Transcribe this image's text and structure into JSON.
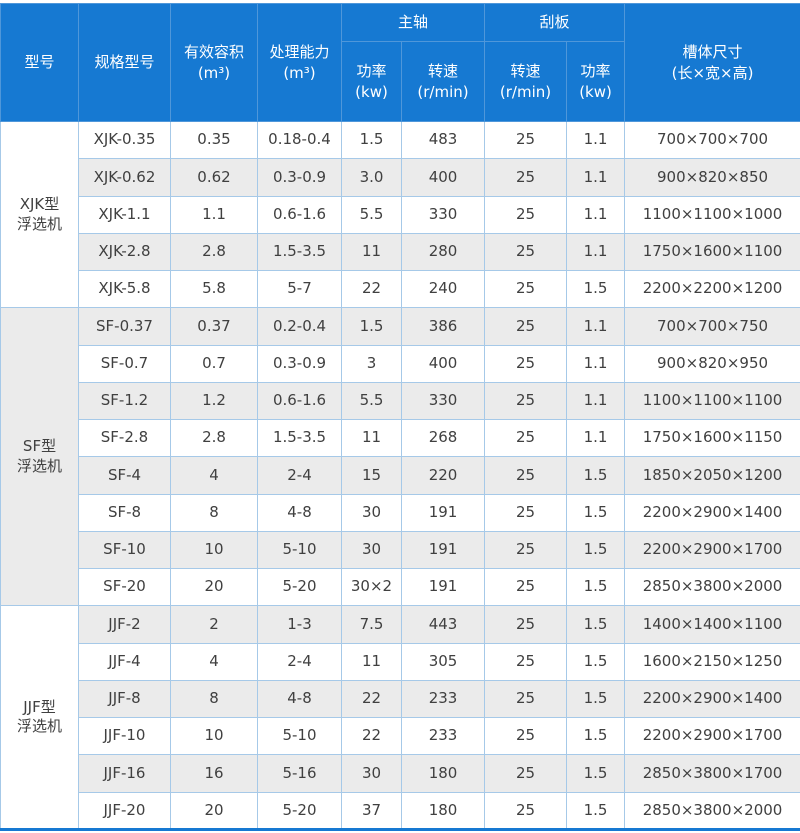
{
  "theme": {
    "header_bg": "#1679d2",
    "header_text": "#ffffff",
    "header_border": "#4f97da",
    "border": "#a6c9e8",
    "row_bg": "#ffffff",
    "row_alt_bg": "#ebebeb",
    "text": "#404040"
  },
  "chart_data": {
    "type": "table",
    "header": {
      "model_group": "型号",
      "spec": "规格型号",
      "volume": "有效容积\n(m³)",
      "capacity": "处理能力\n(m³)",
      "main_shaft": "主轴",
      "scraper": "刮板",
      "shaft_power": "功率\n(kw)",
      "shaft_speed": "转速\n(r/min)",
      "scraper_speed": "转速\n(r/min)",
      "scraper_power": "功率\n(kw)",
      "dimensions": "槽体尺寸\n(长×宽×高)"
    },
    "column_keys": [
      "spec",
      "volume",
      "capacity",
      "shaft_power",
      "shaft_speed",
      "scraper_speed",
      "scraper_power",
      "dimensions"
    ],
    "groups": [
      {
        "label": "XJK型\n浮选机",
        "rows": [
          [
            "XJK-0.35",
            "0.35",
            "0.18-0.4",
            "1.5",
            "483",
            "25",
            "1.1",
            "700×700×700"
          ],
          [
            "XJK-0.62",
            "0.62",
            "0.3-0.9",
            "3.0",
            "400",
            "25",
            "1.1",
            "900×820×850"
          ],
          [
            "XJK-1.1",
            "1.1",
            "0.6-1.6",
            "5.5",
            "330",
            "25",
            "1.1",
            "1100×1100×1000"
          ],
          [
            "XJK-2.8",
            "2.8",
            "1.5-3.5",
            "11",
            "280",
            "25",
            "1.1",
            "1750×1600×1100"
          ],
          [
            "XJK-5.8",
            "5.8",
            "5-7",
            "22",
            "240",
            "25",
            "1.5",
            "2200×2200×1200"
          ]
        ]
      },
      {
        "label": "SF型\n浮选机",
        "rows": [
          [
            "SF-0.37",
            "0.37",
            "0.2-0.4",
            "1.5",
            "386",
            "25",
            "1.1",
            "700×700×750"
          ],
          [
            "SF-0.7",
            "0.7",
            "0.3-0.9",
            "3",
            "400",
            "25",
            "1.1",
            "900×820×950"
          ],
          [
            "SF-1.2",
            "1.2",
            "0.6-1.6",
            "5.5",
            "330",
            "25",
            "1.1",
            "1100×1100×1100"
          ],
          [
            "SF-2.8",
            "2.8",
            "1.5-3.5",
            "11",
            "268",
            "25",
            "1.1",
            "1750×1600×1150"
          ],
          [
            "SF-4",
            "4",
            "2-4",
            "15",
            "220",
            "25",
            "1.5",
            "1850×2050×1200"
          ],
          [
            "SF-8",
            "8",
            "4-8",
            "30",
            "191",
            "25",
            "1.5",
            "2200×2900×1400"
          ],
          [
            "SF-10",
            "10",
            "5-10",
            "30",
            "191",
            "25",
            "1.5",
            "2200×2900×1700"
          ],
          [
            "SF-20",
            "20",
            "5-20",
            "30×2",
            "191",
            "25",
            "1.5",
            "2850×3800×2000"
          ]
        ]
      },
      {
        "label": "JJF型\n浮选机",
        "rows": [
          [
            "JJF-2",
            "2",
            "1-3",
            "7.5",
            "443",
            "25",
            "1.5",
            "1400×1400×1100"
          ],
          [
            "JJF-4",
            "4",
            "2-4",
            "11",
            "305",
            "25",
            "1.5",
            "1600×2150×1250"
          ],
          [
            "JJF-8",
            "8",
            "4-8",
            "22",
            "233",
            "25",
            "1.5",
            "2200×2900×1400"
          ],
          [
            "JJF-10",
            "10",
            "5-10",
            "22",
            "233",
            "25",
            "1.5",
            "2200×2900×1700"
          ],
          [
            "JJF-16",
            "16",
            "5-16",
            "30",
            "180",
            "25",
            "1.5",
            "2850×3800×1700"
          ],
          [
            "JJF-20",
            "20",
            "5-20",
            "37",
            "180",
            "25",
            "1.5",
            "2850×3800×2000"
          ]
        ]
      }
    ]
  }
}
